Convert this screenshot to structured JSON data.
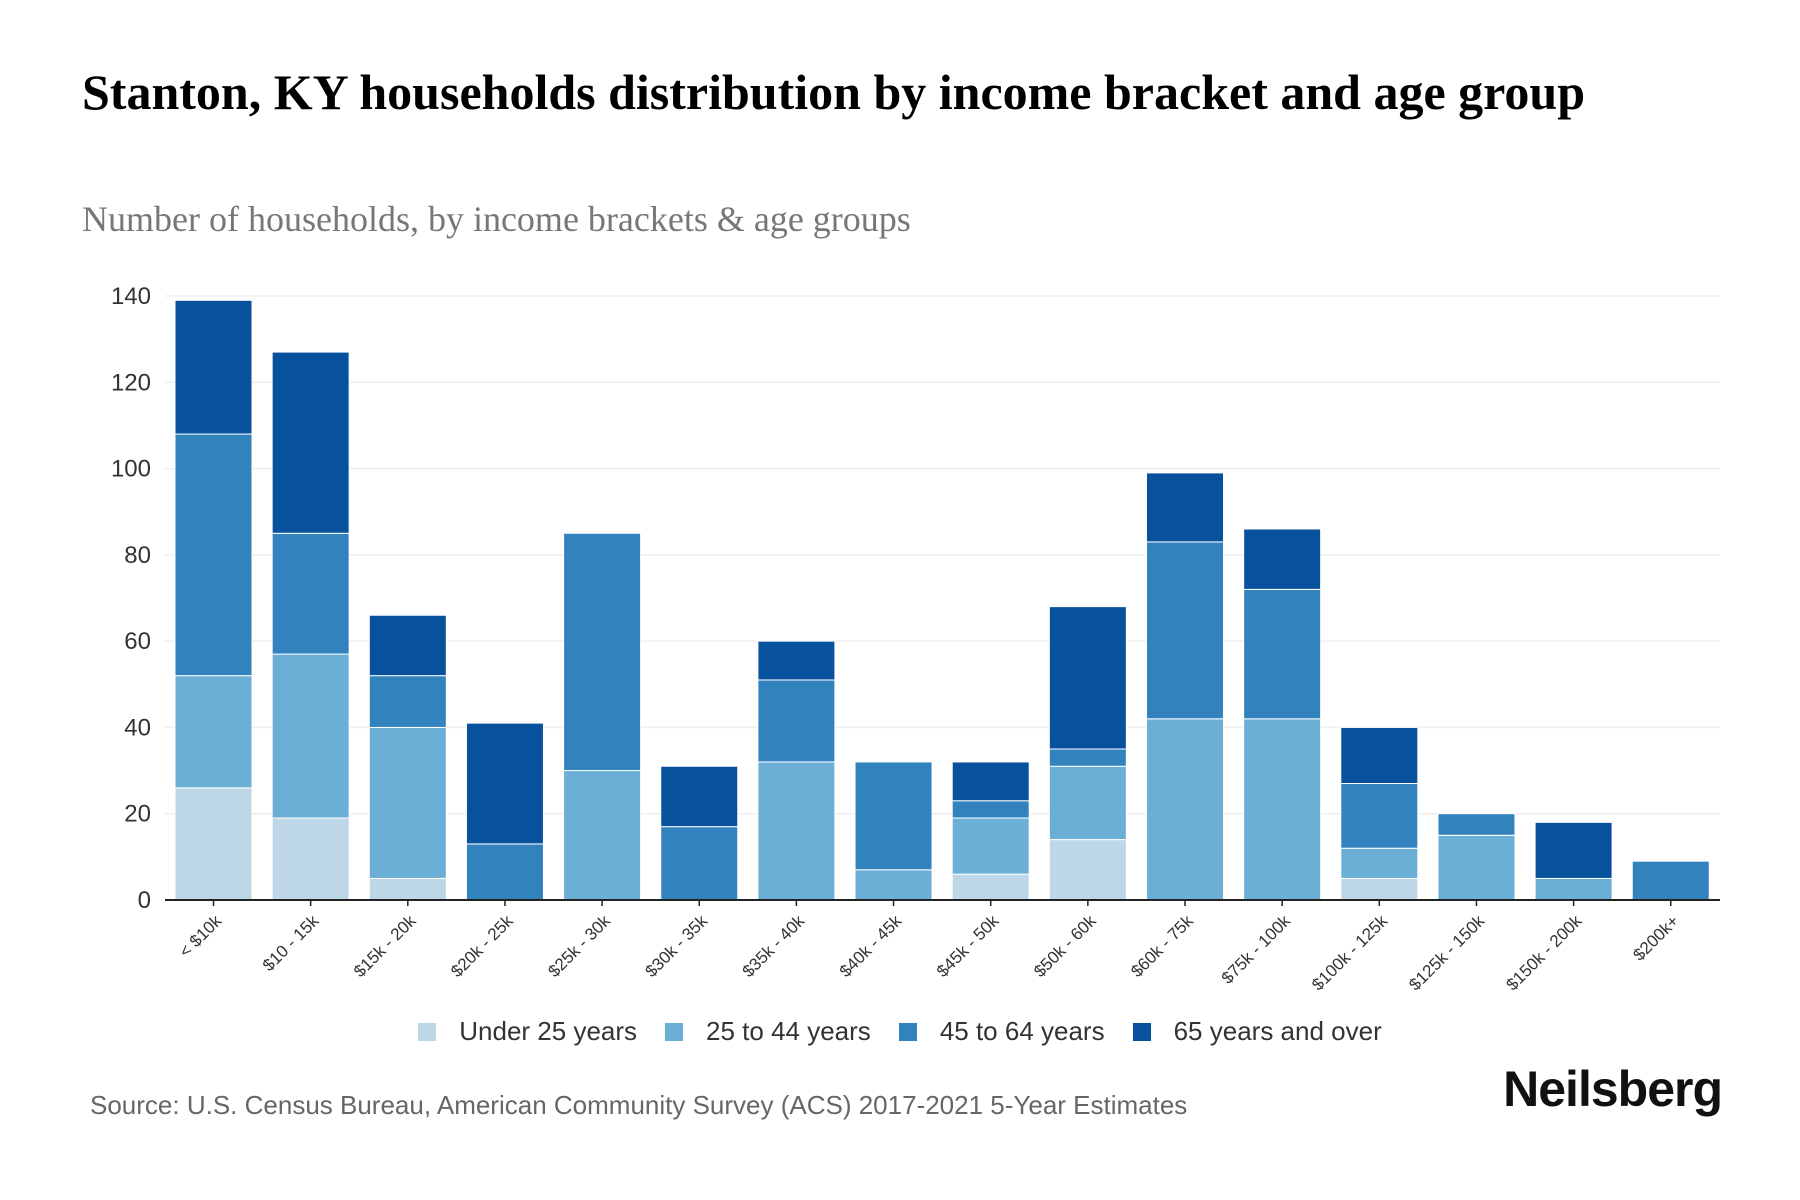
{
  "chart_data": {
    "type": "bar",
    "stacked": true,
    "title": "Stanton, KY households distribution by income bracket and age group",
    "subtitle": "Number of households, by income brackets & age groups",
    "xlabel": "",
    "ylabel": "",
    "ylim": [
      0,
      140
    ],
    "yticks": [
      0,
      20,
      40,
      60,
      80,
      100,
      120,
      140
    ],
    "grid": true,
    "legend_position": "bottom",
    "categories": [
      "< $10k",
      "$10 - 15k",
      "$15k - 20k",
      "$20k - 25k",
      "$25k - 30k",
      "$30k - 35k",
      "$35k - 40k",
      "$40k - 45k",
      "$45k - 50k",
      "$50k - 60k",
      "$60k - 75k",
      "$75k - 100k",
      "$100k - 125k",
      "$125k - 150k",
      "$150k - 200k",
      "$200k+"
    ],
    "series": [
      {
        "name": "Under 25 years",
        "color": "#bdd7e7",
        "values": [
          26,
          19,
          5,
          0,
          0,
          0,
          0,
          0,
          6,
          14,
          0,
          0,
          5,
          0,
          0,
          0
        ]
      },
      {
        "name": "25 to 44 years",
        "color": "#6baed6",
        "values": [
          26,
          38,
          35,
          0,
          30,
          0,
          32,
          7,
          13,
          17,
          42,
          42,
          7,
          15,
          5,
          0
        ]
      },
      {
        "name": "45 to 64 years",
        "color": "#3182bd",
        "values": [
          56,
          28,
          12,
          13,
          55,
          17,
          19,
          25,
          4,
          4,
          41,
          30,
          15,
          5,
          0,
          9
        ]
      },
      {
        "name": "65 years and over",
        "color": "#08519c",
        "values": [
          31,
          42,
          14,
          28,
          0,
          14,
          9,
          0,
          9,
          33,
          16,
          14,
          13,
          0,
          13,
          0
        ]
      }
    ]
  },
  "footer": {
    "source": "Source: U.S. Census Bureau, American Community Survey (ACS) 2017-2021 5-Year Estimates",
    "brand": "Neilsberg"
  }
}
